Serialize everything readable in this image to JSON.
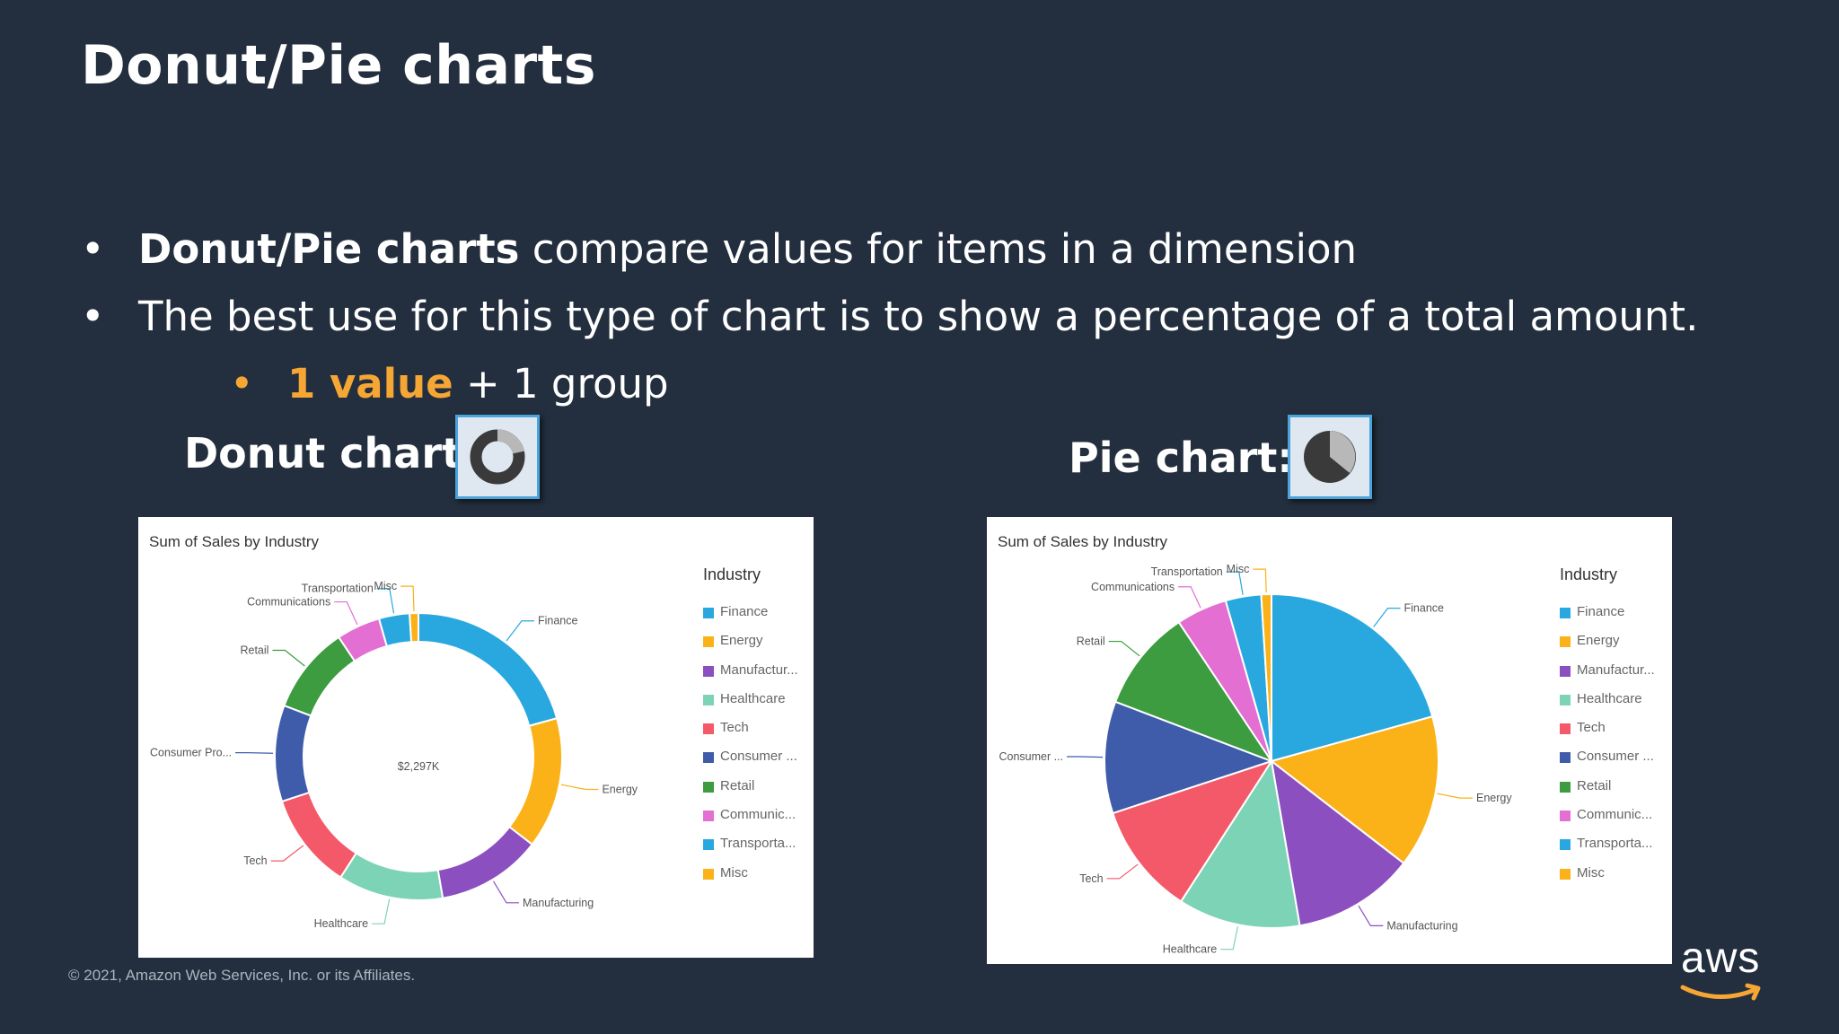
{
  "slide": {
    "title": "Donut/Pie charts",
    "bullets": [
      {
        "bold": "Donut/Pie charts",
        "text": " compare values for items in a dimension"
      },
      {
        "bold": "",
        "text": "The best use for this type of chart is to show a percentage of a total amount."
      }
    ],
    "sub_bullet": {
      "highlight": "1 value",
      "text": " + 1 group"
    },
    "donut_label": "Donut chart:",
    "pie_label": "Pie chart:",
    "copyright": "© 2021, Amazon Web Services, Inc. or its Affiliates.",
    "logo_text": "aws"
  },
  "icons": {
    "donut_icon": "donut-chart-icon",
    "pie_icon": "pie-chart-icon"
  },
  "chart_data": [
    {
      "type": "donut",
      "title": "Sum of Sales by Industry",
      "legend_title": "Industry",
      "center_label": "$2,297K",
      "slices": [
        {
          "label": "Finance",
          "legend": "Finance",
          "value": 21,
          "color": "#29a8e0"
        },
        {
          "label": "Energy",
          "legend": "Energy",
          "value": 15,
          "color": "#fbb218"
        },
        {
          "label": "Manufacturing",
          "legend": "Manufactur...",
          "value": 12,
          "color": "#8c4fbf"
        },
        {
          "label": "Healthcare",
          "legend": "Healthcare",
          "value": 12,
          "color": "#7dd3b6"
        },
        {
          "label": "Tech",
          "legend": "Tech",
          "value": 11,
          "color": "#f4596a"
        },
        {
          "label": "Consumer Pro...",
          "legend": "Consumer ...",
          "value": 11,
          "color": "#3f5cab"
        },
        {
          "label": "Retail",
          "legend": "Retail",
          "value": 10,
          "color": "#3c9c3f"
        },
        {
          "label": "Communications",
          "legend": "Communic...",
          "value": 5,
          "color": "#e46fd2"
        },
        {
          "label": "Transportation",
          "legend": "Transporta...",
          "value": 3.5,
          "color": "#29a8e0"
        },
        {
          "label": "Misc",
          "legend": "Misc",
          "value": 1,
          "color": "#fbb218"
        }
      ]
    },
    {
      "type": "pie",
      "title": "Sum of Sales by Industry",
      "legend_title": "Industry",
      "slices": [
        {
          "label": "Finance",
          "legend": "Finance",
          "value": 21,
          "color": "#29a8e0"
        },
        {
          "label": "Energy",
          "legend": "Energy",
          "value": 15,
          "color": "#fbb218"
        },
        {
          "label": "Manufacturing",
          "legend": "Manufactur...",
          "value": 12,
          "color": "#8c4fbf"
        },
        {
          "label": "Healthcare",
          "legend": "Healthcare",
          "value": 12,
          "color": "#7dd3b6"
        },
        {
          "label": "Tech",
          "legend": "Tech",
          "value": 11,
          "color": "#f4596a"
        },
        {
          "label": "Consumer ...",
          "legend": "Consumer ...",
          "value": 11,
          "color": "#3f5cab"
        },
        {
          "label": "Retail",
          "legend": "Retail",
          "value": 10,
          "color": "#3c9c3f"
        },
        {
          "label": "Communications",
          "legend": "Communic...",
          "value": 5,
          "color": "#e46fd2"
        },
        {
          "label": "Transportation",
          "legend": "Transporta...",
          "value": 3.5,
          "color": "#29a8e0"
        },
        {
          "label": "Misc",
          "legend": "Misc",
          "value": 1,
          "color": "#fbb218"
        }
      ]
    }
  ]
}
